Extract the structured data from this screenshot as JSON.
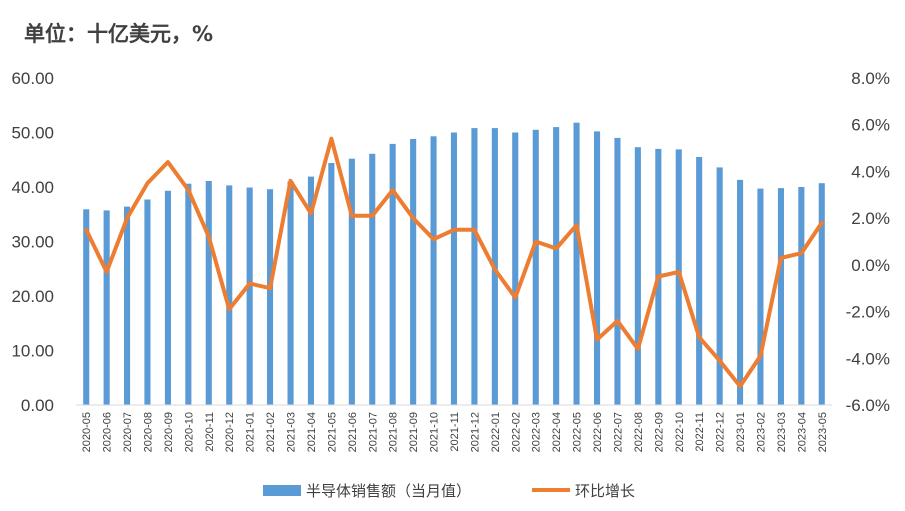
{
  "chart_data": {
    "type": "bar+line",
    "unit_label": "单位：十亿美元，%",
    "categories": [
      "2020-05",
      "2020-06",
      "2020-07",
      "2020-08",
      "2020-09",
      "2020-10",
      "2020-11",
      "2020-12",
      "2021-01",
      "2021-02",
      "2021-03",
      "2021-04",
      "2021-05",
      "2021-06",
      "2021-07",
      "2021-08",
      "2021-09",
      "2021-10",
      "2021-11",
      "2021-12",
      "2022-01",
      "2022-02",
      "2022-03",
      "2022-04",
      "2022-05",
      "2022-06",
      "2022-07",
      "2022-08",
      "2022-09",
      "2022-10",
      "2022-11",
      "2022-12",
      "2023-01",
      "2023-02",
      "2023-03",
      "2023-04",
      "2023-05"
    ],
    "series": [
      {
        "name": "半导体销售额（当月值）",
        "kind": "bar",
        "axis": "left",
        "color": "#5B9BD5",
        "values": [
          35.9,
          35.7,
          36.4,
          37.7,
          39.3,
          40.6,
          41.1,
          40.3,
          39.9,
          39.6,
          41.0,
          41.9,
          44.4,
          45.2,
          46.1,
          47.9,
          48.8,
          49.3,
          50.0,
          50.8,
          50.8,
          50.0,
          50.5,
          51.0,
          51.8,
          50.2,
          49.0,
          47.3,
          47.0,
          46.9,
          45.5,
          43.6,
          41.3,
          39.7,
          39.8,
          40.0,
          40.7
        ]
      },
      {
        "name": "环比增长",
        "kind": "line",
        "axis": "right",
        "color": "#ED7D31",
        "values": [
          1.5,
          -0.3,
          2.0,
          3.5,
          4.4,
          3.2,
          1.2,
          -1.9,
          -0.8,
          -1.0,
          3.6,
          2.2,
          5.4,
          2.1,
          2.1,
          3.2,
          2.0,
          1.1,
          1.5,
          1.5,
          -0.2,
          -1.4,
          1.0,
          0.7,
          1.7,
          -3.2,
          -2.4,
          -3.6,
          -0.5,
          -0.3,
          -3.1,
          -4.1,
          -5.2,
          -3.9,
          0.3,
          0.5,
          1.8
        ]
      }
    ],
    "left_axis": {
      "min": 0,
      "max": 60,
      "step": 10,
      "tick_labels": [
        "0.00",
        "10.00",
        "20.00",
        "30.00",
        "40.00",
        "50.00",
        "60.00"
      ]
    },
    "right_axis": {
      "min": -6,
      "max": 8,
      "step": 2,
      "tick_labels": [
        "-6.0%",
        "-4.0%",
        "-2.0%",
        "0.0%",
        "2.0%",
        "4.0%",
        "6.0%",
        "8.0%"
      ]
    },
    "grid": false,
    "legend_placement": "bottom"
  }
}
